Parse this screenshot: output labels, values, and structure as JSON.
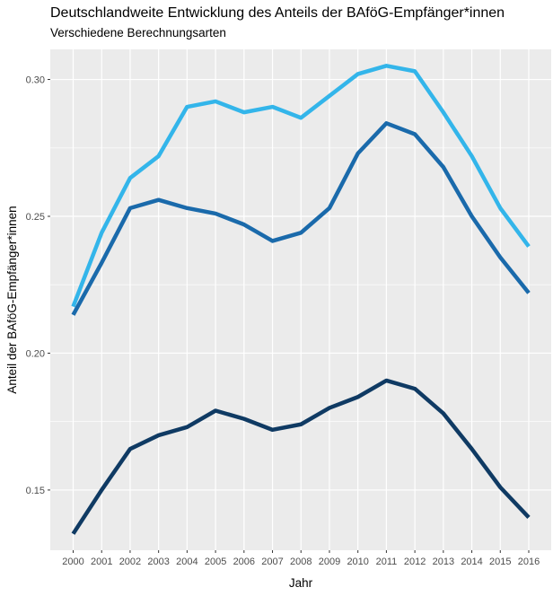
{
  "chart_data": {
    "type": "line",
    "title": "Deutschlandweite Entwicklung des Anteils der BAföG-Empfänger*innen",
    "subtitle": "Verschiedene Berechnungsarten",
    "xlabel": "Jahr",
    "ylabel": "Anteil der BAföG-Empfänger*innen",
    "x": [
      "2000",
      "2001",
      "2002",
      "2003",
      "2004",
      "2005",
      "2006",
      "2007",
      "2008",
      "2009",
      "2010",
      "2011",
      "2012",
      "2013",
      "2014",
      "2015",
      "2016"
    ],
    "yticks": [
      "0.15",
      "0.20",
      "0.25",
      "0.30"
    ],
    "ylim": [
      0.128,
      0.311
    ],
    "grid": true,
    "legend": "none",
    "series": [
      {
        "color": "#33b5ea",
        "values": [
          0.217,
          0.244,
          0.264,
          0.272,
          0.29,
          0.292,
          0.288,
          0.29,
          0.286,
          0.294,
          0.302,
          0.305,
          0.303,
          0.288,
          0.272,
          0.253,
          0.239
        ]
      },
      {
        "color": "#1a6aab",
        "values": [
          0.214,
          0.233,
          0.253,
          0.256,
          0.253,
          0.251,
          0.247,
          0.241,
          0.244,
          0.253,
          0.273,
          0.284,
          0.28,
          0.268,
          0.25,
          0.235,
          0.222
        ]
      },
      {
        "color": "#0f3a63",
        "values": [
          0.134,
          0.15,
          0.165,
          0.17,
          0.173,
          0.179,
          0.176,
          0.172,
          0.174,
          0.18,
          0.184,
          0.19,
          0.187,
          0.178,
          0.165,
          0.151,
          0.14
        ]
      }
    ]
  }
}
